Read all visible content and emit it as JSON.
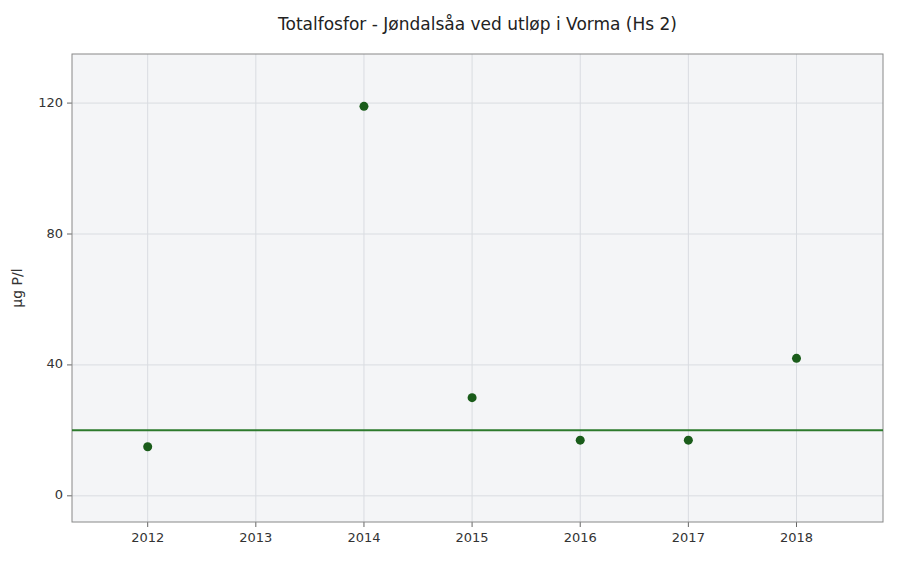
{
  "chart_data": {
    "type": "scatter",
    "title": "Totalfosfor - Jøndalsåa ved utløp i Vorma (Hs 2)",
    "ylabel": "µg P/l",
    "x": [
      2012,
      2014,
      2015,
      2016,
      2017,
      2018
    ],
    "values": [
      15,
      119,
      30,
      17,
      17,
      42
    ],
    "color": "#1a5c1a",
    "hline": {
      "y": 20,
      "color": "#2d7a2d"
    },
    "xlim": [
      2011.3,
      2018.8
    ],
    "ylim": [
      -8,
      135
    ],
    "xticks": [
      2012,
      2013,
      2014,
      2015,
      2016,
      2017,
      2018
    ],
    "yticks": [
      0,
      40,
      80,
      120
    ],
    "grid": true
  }
}
